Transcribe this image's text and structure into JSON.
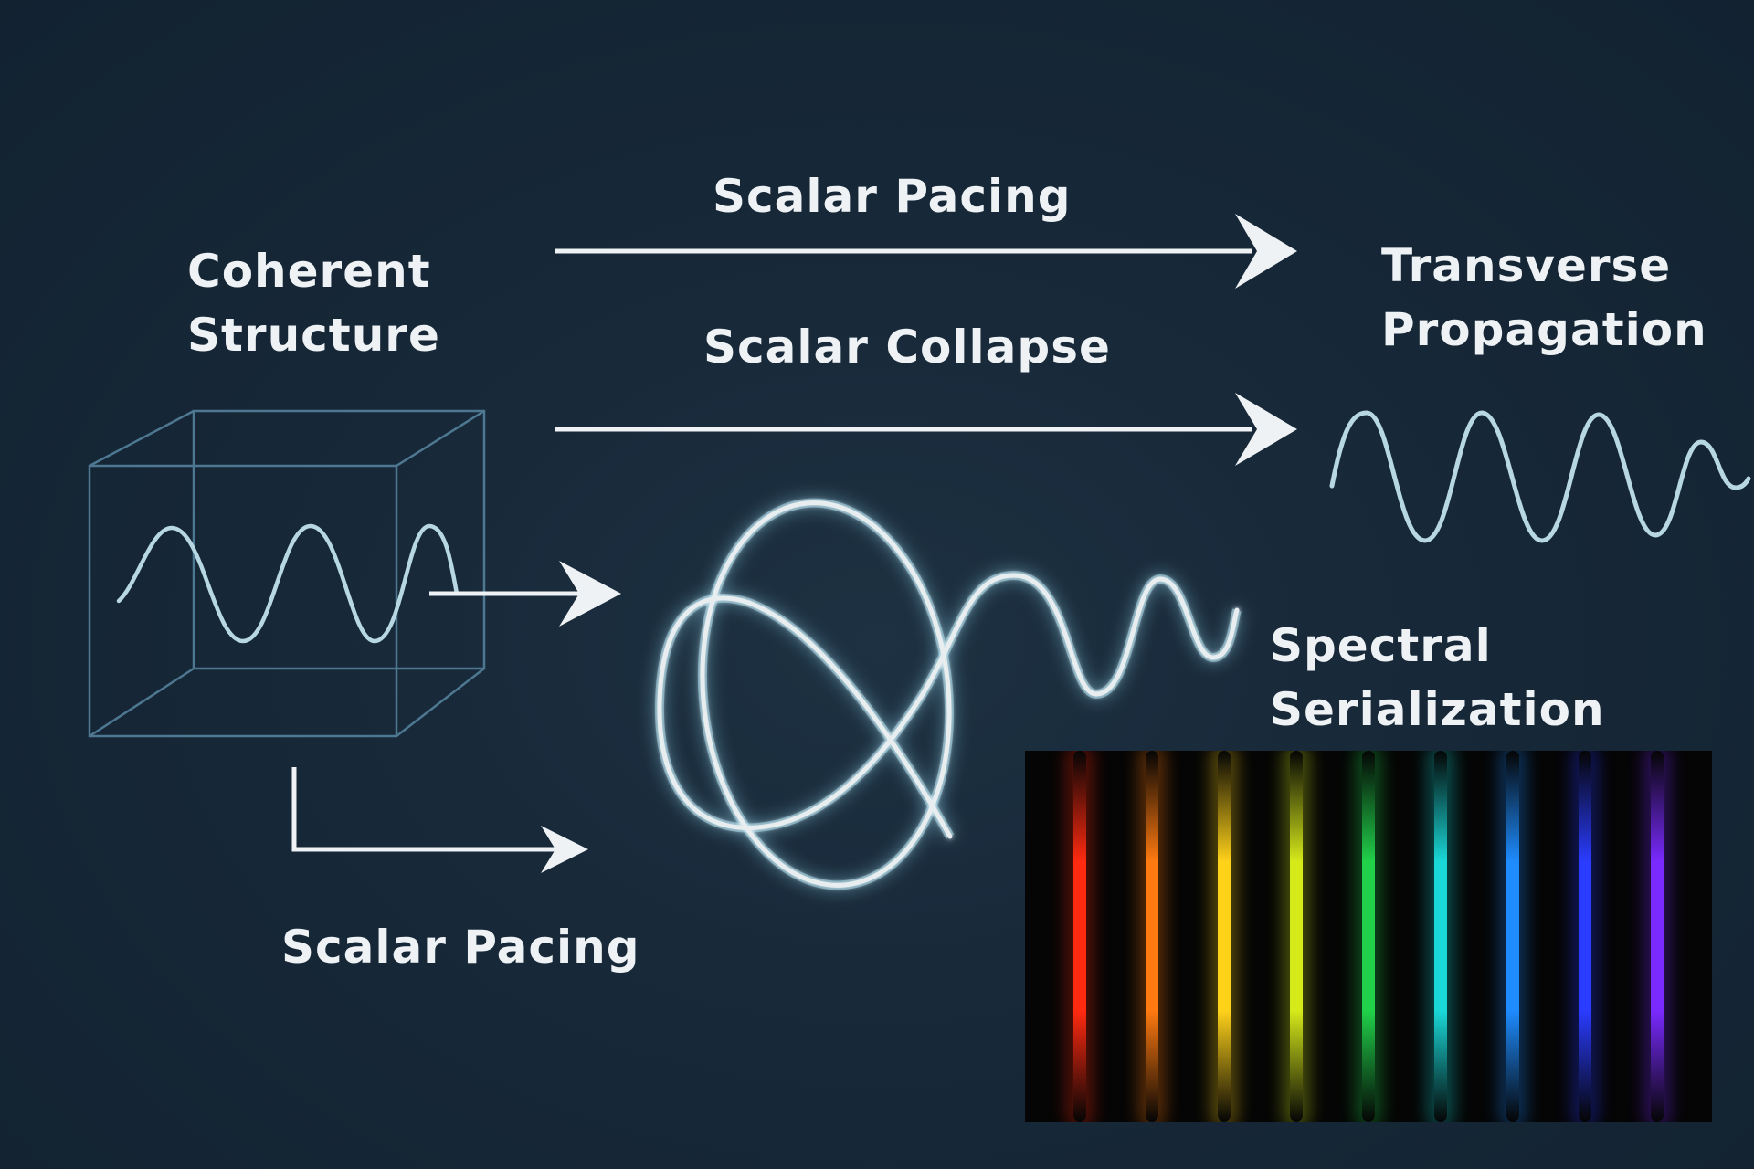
{
  "labels": {
    "coherent_structure": [
      "Coherent",
      "Structure"
    ],
    "scalar_pacing_top": "Scalar Pacing",
    "scalar_collapse": "Scalar Collapse",
    "transverse_propagation": [
      "Transverse",
      "Propagation"
    ],
    "spectral_serialization": [
      "Spectral",
      "Serialization"
    ],
    "scalar_pacing_bottom": "Scalar Pacing"
  },
  "icons": [
    "wave-cube-icon",
    "knot-loop-icon",
    "transverse-wave-icon",
    "spectrum-lines-icon"
  ],
  "colors": {
    "background": "#162838",
    "text": "#eef2f4",
    "cube_edges": "#4e7891",
    "wave": "#b7d8e3",
    "loop_glow": "#8fd4ea"
  },
  "spectrum_lines": [
    {
      "color": "#ff2a10"
    },
    {
      "color": "#ff7a10"
    },
    {
      "color": "#ffd21a"
    },
    {
      "color": "#d6ea1a"
    },
    {
      "color": "#21d14a"
    },
    {
      "color": "#1ad8d8"
    },
    {
      "color": "#1e8cff"
    },
    {
      "color": "#2a3cff"
    },
    {
      "color": "#7a2aff"
    }
  ]
}
